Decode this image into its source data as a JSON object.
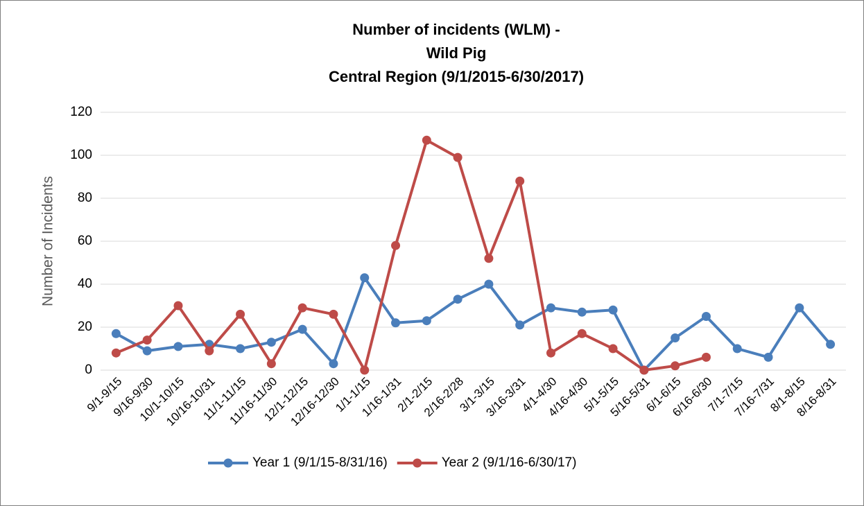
{
  "chart_data": {
    "type": "line",
    "title": [
      "Number of incidents (WLM) -",
      "Wild Pig",
      "Central Region (9/1/2015-6/30/2017)"
    ],
    "y_label": "Number of Incidents",
    "categories": [
      "9/1-9/15",
      "9/16-9/30",
      "10/1-10/15",
      "10/16-10/31",
      "11/1-11/15",
      "11/16-11/30",
      "12/1-12/15",
      "12/16-12/30",
      "1/1-1/15",
      "1/16-1/31",
      "2/1-2/15",
      "2/16-2/28",
      "3/1-3/15",
      "3/16-3/31",
      "4/1-4/30",
      "4/16-4/30",
      "5/1-5/15",
      "5/16-5/31",
      "6/1-6/15",
      "6/16-6/30",
      "7/1-7/15",
      "7/16-7/31",
      "8/1-8/15",
      "8/16-8/31"
    ],
    "series": [
      {
        "name": "Year 1 (9/1/15-8/31/16)",
        "color": "#4a7ebb",
        "values": [
          17,
          9,
          11,
          12,
          10,
          13,
          19,
          3,
          43,
          22,
          23,
          33,
          40,
          21,
          29,
          27,
          28,
          0,
          15,
          25,
          10,
          6,
          29,
          12
        ]
      },
      {
        "name": "Year 2 (9/1/16-6/30/17)",
        "color": "#be4b48",
        "values": [
          8,
          14,
          30,
          9,
          26,
          3,
          29,
          26,
          0,
          58,
          107,
          99,
          52,
          88,
          8,
          17,
          10,
          0,
          2,
          6,
          null,
          null,
          null,
          null
        ]
      }
    ],
    "ylim": [
      0,
      120
    ],
    "yticks": [
      0,
      20,
      40,
      60,
      80,
      100,
      120
    ],
    "grid": true,
    "legend": "bottom"
  }
}
